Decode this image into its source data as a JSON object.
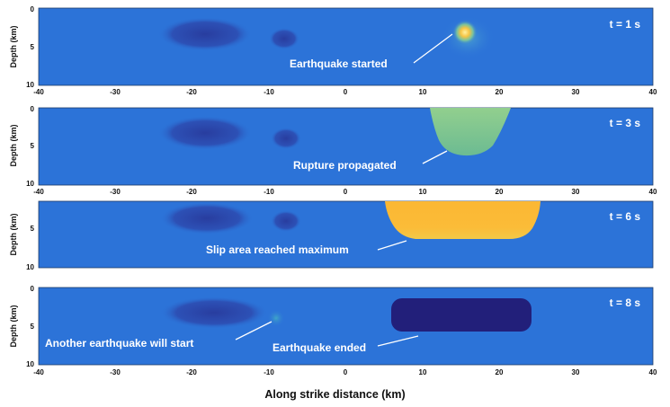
{
  "figure": {
    "xlabel": "Along strike distance (km)",
    "ylabel": "Depth (km)",
    "x_ticks": [
      "-40",
      "-30",
      "-20",
      "-10",
      "0",
      "10",
      "20",
      "30",
      "40"
    ],
    "y_ticks": [
      "0",
      "5",
      "10"
    ],
    "colors": {
      "background": "#2c73d8",
      "low_slip": "#3048b0",
      "no_slip": "#221f7a",
      "rupture_green": "#78c090",
      "rupture_yellow": "#fbb636",
      "hypocenter": "#f6d04a",
      "annotation_text": "#ffffff"
    }
  },
  "panels": [
    {
      "time_label": "t = 1 s",
      "annotation": "Earthquake started"
    },
    {
      "time_label": "t = 3 s",
      "annotation": "Rupture propagated"
    },
    {
      "time_label": "t = 6 s",
      "annotation": "Slip area reached maximum"
    },
    {
      "time_label": "t = 8 s",
      "annotations": [
        "Another earthquake will start",
        "Earthquake ended"
      ]
    }
  ]
}
